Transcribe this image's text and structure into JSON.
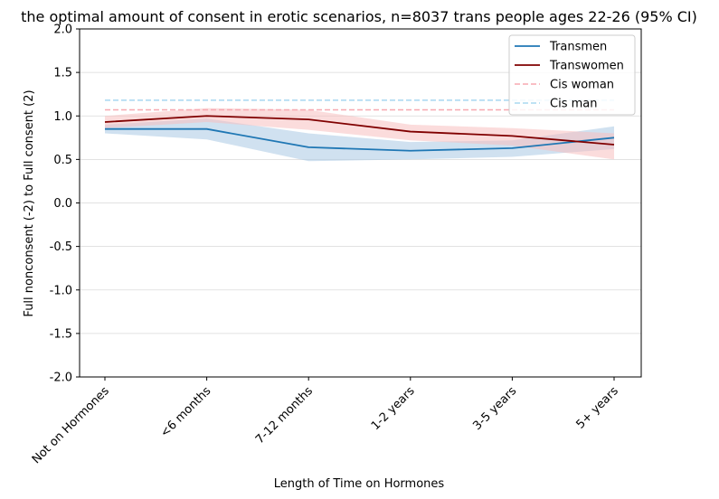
{
  "chart_data": {
    "type": "line",
    "title": "the optimal amount of consent in erotic scenarios, n=8037 trans people ages 22-26 (95% CI)",
    "xlabel": "Length of Time on Hormones",
    "ylabel": "Full nonconsent (-2) to Full consent (2)",
    "categories": [
      "Not on Hormones",
      "<6 months",
      "7-12 months",
      "1-2 years",
      "3-5 years",
      "5+ years"
    ],
    "ylim": [
      -2.0,
      2.0
    ],
    "yticks": [
      "-2.0",
      "-1.5",
      "-1.0",
      "-0.5",
      "0.0",
      "0.5",
      "1.0",
      "1.5",
      "2.0"
    ],
    "ytick_values": [
      -2.0,
      -1.5,
      -1.0,
      -0.5,
      0.0,
      0.5,
      1.0,
      1.5,
      2.0
    ],
    "grid": "horizontal",
    "legend_position": "top-right",
    "series": [
      {
        "name": "Transmen",
        "color": "#1f77b4",
        "band_color": "#a9c8e4",
        "style": "solid",
        "values": [
          0.85,
          0.85,
          0.64,
          0.6,
          0.63,
          0.75
        ],
        "ci_low": [
          0.8,
          0.73,
          0.48,
          0.5,
          0.53,
          0.62
        ],
        "ci_high": [
          0.9,
          0.97,
          0.8,
          0.7,
          0.72,
          0.88
        ]
      },
      {
        "name": "Transwomen",
        "color": "#800000",
        "band_color": "#f7c0c0",
        "style": "solid",
        "values": [
          0.93,
          1.0,
          0.96,
          0.82,
          0.77,
          0.67
        ],
        "ci_low": [
          0.86,
          0.93,
          0.84,
          0.72,
          0.66,
          0.5
        ],
        "ci_high": [
          1.0,
          1.09,
          1.07,
          0.9,
          0.86,
          0.8
        ]
      },
      {
        "name": "Cis woman",
        "color": "#f7a8b0",
        "style": "dashed",
        "values": [
          1.07,
          1.07,
          1.07,
          1.07,
          1.07,
          1.07
        ]
      },
      {
        "name": "Cis man",
        "color": "#a8d8f0",
        "style": "dashed",
        "values": [
          1.18,
          1.18,
          1.18,
          1.18,
          1.18,
          1.18
        ]
      }
    ]
  }
}
